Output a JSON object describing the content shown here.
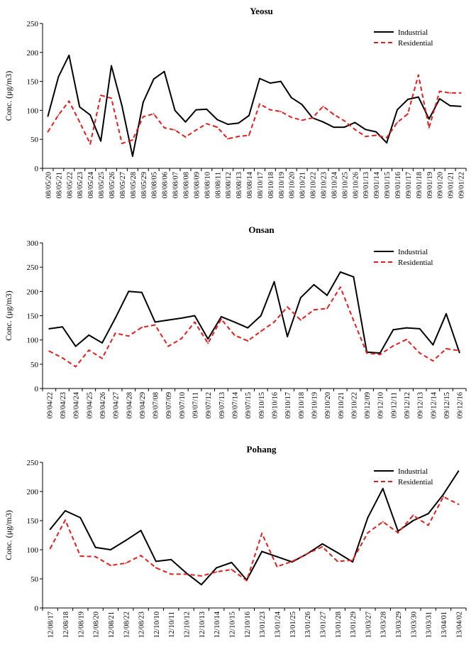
{
  "chart_data": [
    {
      "type": "line",
      "title": "Yeosu",
      "ylabel": "Conc. (μg/m3)",
      "ylim": [
        0,
        250
      ],
      "yticks": [
        0,
        50,
        100,
        150,
        200,
        250
      ],
      "legend_position": "top-right",
      "categories": [
        "08/05/20",
        "08/05/21",
        "08/05/22",
        "08/05/23",
        "08/05/24",
        "08/05/25",
        "08/05/26",
        "08/05/27",
        "08/05/28",
        "08/05/29",
        "08/08/05",
        "08/08/06",
        "08/08/07",
        "08/08/08",
        "08/08/09",
        "08/08/10",
        "08/08/11",
        "08/08/12",
        "08/08/13",
        "08/08/14",
        "08/10/17",
        "08/10/18",
        "08/10/19",
        "08/10/20",
        "08/10/21",
        "08/10/22",
        "08/10/23",
        "08/10/24",
        "08/10/25",
        "08/10/26",
        "09/01/13",
        "09/01/14",
        "09/01/15",
        "09/01/16",
        "09/01/17",
        "09/01/18",
        "09/01/19",
        "09/01/20",
        "09/01/21",
        "09/01/22"
      ],
      "series": [
        {
          "name": "Industrial",
          "color": "#000000",
          "dashed": false,
          "values": [
            90,
            158,
            195,
            106,
            92,
            47,
            177,
            108,
            21,
            114,
            154,
            167,
            100,
            80,
            101,
            102,
            84,
            76,
            78,
            91,
            155,
            147,
            150,
            122,
            110,
            87,
            80,
            71,
            71,
            79,
            67,
            63,
            44,
            101,
            119,
            123,
            85,
            120,
            108,
            107
          ]
        },
        {
          "name": "Residential",
          "color": "#e02020",
          "dashed": true,
          "values": [
            63,
            92,
            116,
            80,
            42,
            126,
            121,
            43,
            49,
            89,
            94,
            70,
            66,
            54,
            66,
            77,
            71,
            51,
            55,
            57,
            111,
            101,
            98,
            88,
            83,
            87,
            107,
            93,
            82,
            67,
            55,
            57,
            53,
            79,
            94,
            161,
            70,
            133,
            130,
            130
          ]
        }
      ]
    },
    {
      "type": "line",
      "title": "Onsan",
      "ylabel": "Conc. (μg/m3)",
      "ylim": [
        0,
        300
      ],
      "yticks": [
        0,
        50,
        100,
        150,
        200,
        250,
        300
      ],
      "legend_position": "top-right",
      "categories": [
        "09/04/22",
        "09/04/23",
        "09/04/24",
        "09/04/25",
        "09/04/26",
        "09/04/27",
        "09/04/28",
        "09/04/29",
        "09/07/08",
        "09/07/09",
        "09/07/10",
        "09/07/11",
        "09/07/12",
        "09/07/13",
        "09/07/14",
        "09/07/15",
        "09/10/15",
        "09/10/16",
        "09/10/17",
        "09/10/18",
        "09/10/19",
        "09/10/20",
        "09/10/21",
        "09/10/22",
        "09/12/09",
        "09/12/10",
        "09/12/11",
        "09/12/12",
        "09/12/13",
        "09/12/14",
        "09/12/15",
        "09/12/16"
      ],
      "series": [
        {
          "name": "Industrial",
          "color": "#000000",
          "dashed": false,
          "values": [
            123,
            127,
            87,
            110,
            94,
            145,
            200,
            198,
            137,
            141,
            145,
            150,
            102,
            148,
            137,
            125,
            150,
            220,
            107,
            187,
            214,
            192,
            240,
            230,
            75,
            73,
            121,
            125,
            123,
            90,
            154,
            74
          ]
        },
        {
          "name": "Residential",
          "color": "#e02020",
          "dashed": true,
          "values": [
            77,
            63,
            45,
            79,
            62,
            114,
            108,
            126,
            131,
            87,
            103,
            137,
            93,
            143,
            110,
            98,
            118,
            137,
            168,
            141,
            162,
            165,
            209,
            140,
            73,
            70,
            88,
            101,
            73,
            57,
            82,
            78
          ]
        }
      ]
    },
    {
      "type": "line",
      "title": "Pohang",
      "ylabel": "Conc. (μg/m3)",
      "ylim": [
        0,
        250
      ],
      "yticks": [
        0,
        50,
        100,
        150,
        200,
        250
      ],
      "legend_position": "top-right",
      "categories": [
        "12/08/17",
        "12/08/18",
        "12/08/19",
        "12/08/20",
        "12/08/21",
        "12/08/22",
        "12/08/23",
        "12/10/10",
        "12/10/11",
        "12/10/12",
        "12/10/13",
        "12/10/14",
        "12/10/15",
        "12/10/16",
        "13/01/23",
        "13/01/24",
        "13/01/25",
        "13/01/26",
        "13/01/27",
        "13/01/28",
        "13/01/29",
        "13/03/27",
        "13/03/28",
        "13/03/29",
        "13/03/30",
        "13/03/31",
        "13/04/01",
        "13/04/02"
      ],
      "series": [
        {
          "name": "Industrial",
          "color": "#000000",
          "dashed": false,
          "values": [
            135,
            167,
            155,
            104,
            100,
            116,
            133,
            80,
            83,
            60,
            40,
            69,
            78,
            48,
            97,
            88,
            79,
            93,
            110,
            95,
            79,
            155,
            205,
            132,
            150,
            162,
            195,
            235
          ]
        },
        {
          "name": "Residential",
          "color": "#e02020",
          "dashed": true,
          "values": [
            102,
            151,
            89,
            88,
            73,
            77,
            90,
            69,
            58,
            58,
            55,
            62,
            66,
            47,
            128,
            71,
            80,
            93,
            105,
            80,
            82,
            129,
            148,
            129,
            159,
            142,
            191,
            178
          ]
        }
      ]
    }
  ]
}
